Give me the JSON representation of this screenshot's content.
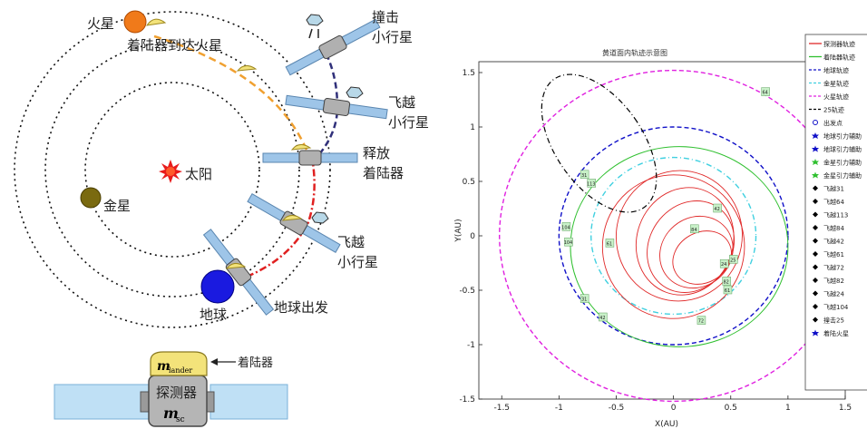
{
  "left_diagram": {
    "bodies": {
      "mars": "火星",
      "sun": "太阳",
      "venus": "金星",
      "earth": "地球"
    },
    "labels": {
      "lander_to_mars": "着陆器到达火星",
      "impact_asteroid_1": "撞击",
      "impact_asteroid_2": "小行星",
      "flyby_asteroid_a1": "飞越",
      "flyby_asteroid_a2": "小行星",
      "release_lander_1": "释放",
      "release_lander_2": "着陆器",
      "flyby_asteroid_b1": "飞越",
      "flyby_asteroid_b2": "小行星",
      "earth_departure": "地球出发"
    },
    "spacecraft_schematic": {
      "lander_symbol": "m",
      "lander_subscript": "lander",
      "lander_label": "着陆器",
      "probe_label": "探测器",
      "probe_symbol": "m",
      "probe_subscript": "sc"
    },
    "colors": {
      "mars": "#f07a1a",
      "sun": "#e81b1b",
      "venus": "#7a6a10",
      "earth": "#1a1ae0",
      "solar_panel": "#9ec5e8",
      "lander": "#f3e37a",
      "route_orange": "#f0a030",
      "route_red": "#e02020",
      "route_blue": "#30307a"
    }
  },
  "chart_data": {
    "type": "line",
    "title": "黄道面内轨迹示意图",
    "xlabel": "X(AU)",
    "ylabel": "Y(AU)",
    "xlim": [
      -1.7,
      1.5
    ],
    "ylim": [
      -1.5,
      1.6
    ],
    "xticks": [
      "-1.5",
      "-1",
      "-0.5",
      "0",
      "0.5",
      "1",
      "1.5"
    ],
    "yticks": [
      "1.5",
      "1",
      "0.5",
      "0",
      "-0.5",
      "-1",
      "-1.5"
    ],
    "legend_position": "right",
    "series": [
      {
        "name": "探测器轨迹",
        "color": "#e02828",
        "style": "solid"
      },
      {
        "name": "着陆器轨迹",
        "color": "#30c030",
        "style": "solid"
      },
      {
        "name": "地球轨迹",
        "color": "#1010c8",
        "style": "dashed",
        "radius": 1.0
      },
      {
        "name": "金星轨迹",
        "color": "#40d0e0",
        "style": "dashdot",
        "radius": 0.72
      },
      {
        "name": "火星轨迹",
        "color": "#e020e0",
        "style": "dashed",
        "radius": 1.52
      },
      {
        "name": "25轨迹",
        "color": "#000000",
        "style": "dashdot"
      }
    ],
    "markers": [
      {
        "name": "出发点",
        "color": "#1010c8",
        "symbol": "circle"
      },
      {
        "name": "地球引力辅助",
        "color": "#1010c8",
        "symbol": "star"
      },
      {
        "name": "地球引力辅助",
        "color": "#1010c8",
        "symbol": "star"
      },
      {
        "name": "金星引力辅助",
        "color": "#30c030",
        "symbol": "star"
      },
      {
        "name": "金星引力辅助",
        "color": "#30c030",
        "symbol": "star"
      },
      {
        "name": "飞越31",
        "color": "#000000",
        "symbol": "diamond"
      },
      {
        "name": "飞越64",
        "color": "#000000",
        "symbol": "diamond"
      },
      {
        "name": "飞越113",
        "color": "#000000",
        "symbol": "diamond"
      },
      {
        "name": "飞越84",
        "color": "#000000",
        "symbol": "diamond"
      },
      {
        "name": "飞越42",
        "color": "#000000",
        "symbol": "diamond"
      },
      {
        "name": "飞越61",
        "color": "#000000",
        "symbol": "diamond"
      },
      {
        "name": "飞越72",
        "color": "#000000",
        "symbol": "diamond"
      },
      {
        "name": "飞越82",
        "color": "#000000",
        "symbol": "diamond"
      },
      {
        "name": "飞越24",
        "color": "#000000",
        "symbol": "diamond"
      },
      {
        "name": "飞越104",
        "color": "#000000",
        "symbol": "diamond"
      },
      {
        "name": "撞击25",
        "color": "#000000",
        "symbol": "diamond"
      },
      {
        "name": "着陆火星",
        "color": "#1010c8",
        "symbol": "star"
      }
    ],
    "point_labels": [
      {
        "text": "64",
        "x": 0.8,
        "y": 1.32
      },
      {
        "text": "31",
        "x": -0.78,
        "y": 0.56
      },
      {
        "text": "113",
        "x": -0.72,
        "y": 0.48
      },
      {
        "text": "42",
        "x": 0.38,
        "y": 0.25
      },
      {
        "text": "84",
        "x": 0.18,
        "y": 0.06
      },
      {
        "text": "61",
        "x": -0.56,
        "y": -0.07
      },
      {
        "text": "104",
        "x": -0.94,
        "y": 0.08
      },
      {
        "text": "104",
        "x": -0.92,
        "y": -0.06
      },
      {
        "text": "25",
        "x": 0.52,
        "y": -0.22
      },
      {
        "text": "24",
        "x": 0.44,
        "y": -0.26
      },
      {
        "text": "82",
        "x": 0.46,
        "y": -0.42
      },
      {
        "text": "61",
        "x": 0.47,
        "y": -0.5
      },
      {
        "text": "31",
        "x": -0.78,
        "y": -0.58
      },
      {
        "text": "42",
        "x": -0.62,
        "y": -0.75
      },
      {
        "text": "72",
        "x": 0.24,
        "y": -0.78
      }
    ]
  }
}
